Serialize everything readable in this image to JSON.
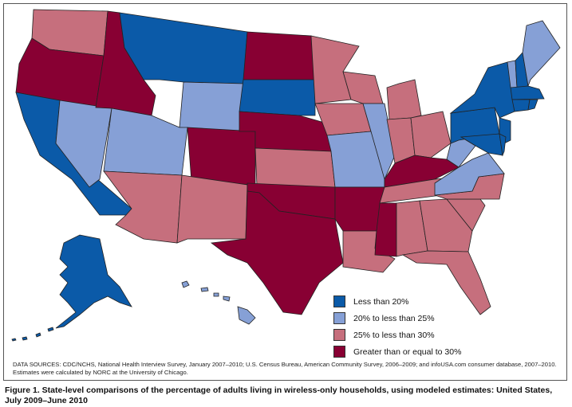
{
  "colors": {
    "c0": "#0b5aa8",
    "c1": "#86a0d6",
    "c2": "#c66f7d",
    "c3": "#880033"
  },
  "legend": [
    {
      "label": "Less than 20%",
      "cat": "c0"
    },
    {
      "label": "20% to less than 25%",
      "cat": "c1"
    },
    {
      "label": "25% to less than 30%",
      "cat": "c2"
    },
    {
      "label": "Greater than or equal to 30%",
      "cat": "c3"
    }
  ],
  "states": {
    "WA": "c2",
    "OR": "c3",
    "CA": "c0",
    "NV": "c1",
    "ID": "c3",
    "MT": "c0",
    "WY": "c1",
    "UT": "c1",
    "CO": "c3",
    "AZ": "c2",
    "NM": "c2",
    "ND": "c3",
    "SD": "c0",
    "NE": "c3",
    "KS": "c2",
    "OK": "c3",
    "TX": "c3",
    "MN": "c2",
    "IA": "c2",
    "MO": "c1",
    "AR": "c3",
    "LA": "c2",
    "WI": "c2",
    "IL": "c1",
    "MI": "c2",
    "IN": "c2",
    "OH": "c2",
    "KY": "c3",
    "TN": "c2",
    "MS": "c3",
    "AL": "c2",
    "GA": "c2",
    "FL": "c2",
    "SC": "c2",
    "NC": "c2",
    "VA": "c1",
    "WV": "c1",
    "PA": "c0",
    "NY": "c0",
    "NJ": "c0",
    "MD": "c0",
    "DE": "c0",
    "VT": "c1",
    "NH": "c0",
    "ME": "c1",
    "MA": "c0",
    "CT": "c0",
    "RI": "c0",
    "AK": "c0",
    "HI": "c1"
  },
  "sources": "DATA SOURCES: CDC/NCHS, National Health Interview Survey, January 2007–2010; U.S. Census Bureau, American Community Survey, 2006–2009; and infoUSA.com consumer database, 2007–2010. Estimates were calculated by NORC at the University of Chicago.",
  "caption": "Figure 1. State-level comparisons of the percentage of adults living in wireless-only households, using modeled estimates: United States, July 2009–June 2010"
}
